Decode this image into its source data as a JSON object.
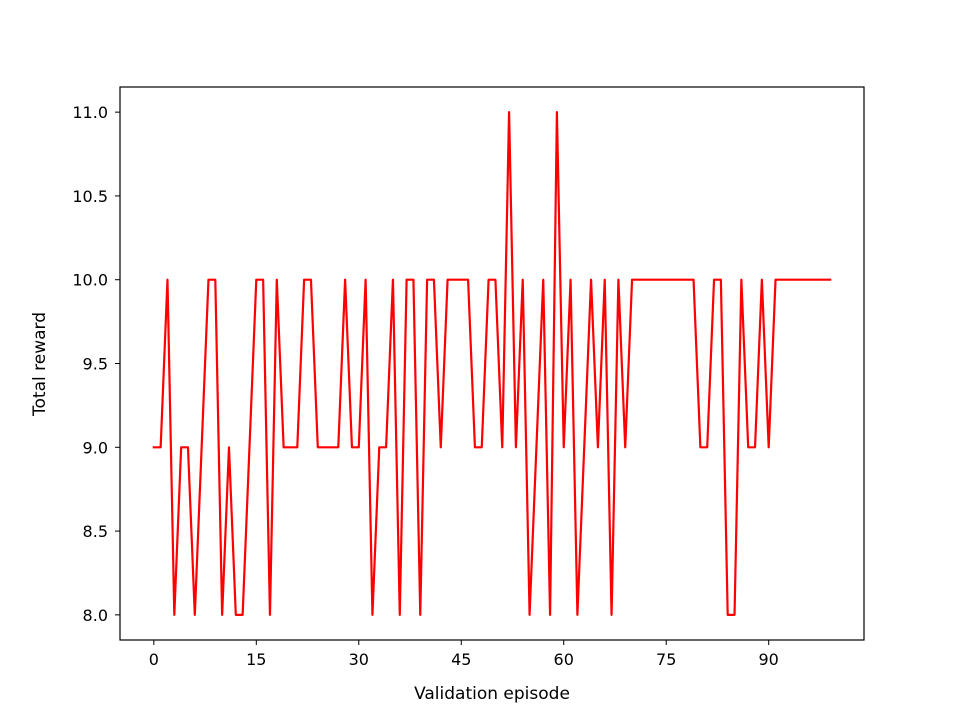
{
  "chart_data": {
    "type": "line",
    "title": "",
    "xlabel": "Validation episode",
    "ylabel": "Total reward",
    "xlim": [
      -4.95,
      103.95
    ],
    "ylim": [
      7.85,
      11.15
    ],
    "xticks": [
      0,
      15,
      30,
      45,
      60,
      75,
      90
    ],
    "yticks": [
      8.0,
      8.5,
      9.0,
      9.5,
      10.0,
      10.5,
      11.0
    ],
    "grid": false,
    "legend": "none",
    "series": [
      {
        "color": "#ff0000",
        "x": [
          0,
          1,
          2,
          3,
          4,
          5,
          6,
          7,
          8,
          9,
          10,
          11,
          12,
          13,
          14,
          15,
          16,
          17,
          18,
          19,
          20,
          21,
          22,
          23,
          24,
          25,
          26,
          27,
          28,
          29,
          30,
          31,
          32,
          33,
          34,
          35,
          36,
          37,
          38,
          39,
          40,
          41,
          42,
          43,
          44,
          45,
          46,
          47,
          48,
          49,
          50,
          51,
          52,
          53,
          54,
          55,
          56,
          57,
          58,
          59,
          60,
          61,
          62,
          63,
          64,
          65,
          66,
          67,
          68,
          69,
          70,
          71,
          72,
          73,
          74,
          75,
          76,
          77,
          78,
          79,
          80,
          81,
          82,
          83,
          84,
          85,
          86,
          87,
          88,
          89,
          90,
          91,
          92,
          93,
          94,
          95,
          96,
          97,
          98,
          99
        ],
        "y": [
          9,
          9,
          10,
          8,
          9,
          9,
          8,
          9,
          10,
          10,
          8,
          9,
          8,
          8,
          9,
          10,
          10,
          8,
          10,
          9,
          9,
          9,
          10,
          10,
          9,
          9,
          9,
          9,
          10,
          9,
          9,
          10,
          8,
          9,
          9,
          10,
          8,
          10,
          10,
          8,
          10,
          10,
          9,
          10,
          10,
          10,
          10,
          9,
          9,
          10,
          10,
          9,
          11,
          9,
          10,
          8,
          9,
          10,
          8,
          11,
          9,
          10,
          8,
          9,
          10,
          9,
          10,
          8,
          10,
          9,
          10,
          10,
          10,
          10,
          10,
          10,
          10,
          10,
          10,
          10,
          9,
          9,
          10,
          10,
          8,
          8,
          10,
          9,
          9,
          10,
          9,
          10,
          10,
          10,
          10,
          10,
          10,
          10,
          10,
          10
        ]
      }
    ]
  }
}
